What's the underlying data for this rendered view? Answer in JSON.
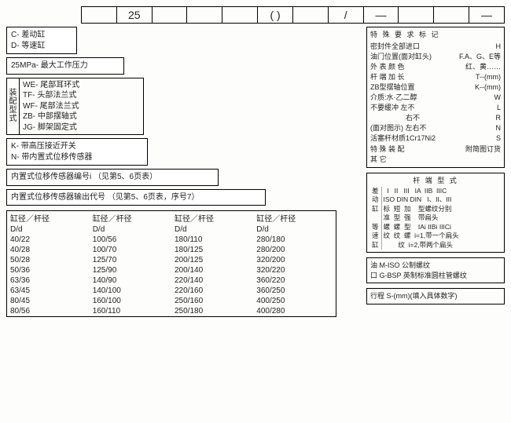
{
  "strip": [
    "",
    "25",
    "",
    "",
    "",
    "(  )",
    "",
    "/",
    "—",
    "",
    "",
    "—",
    ""
  ],
  "left_boxes": {
    "type_codes": [
      "C- 差动缸",
      "D- 等速缸"
    ],
    "pressure": "25MPa- 最大工作压力",
    "mount_side": "装配型式",
    "mounts": [
      "WE- 尾部耳环式",
      "TF- 头部法兰式",
      "WF- 尾部法兰式",
      "ZB- 中部摆轴式",
      "JG- 脚架固定式"
    ],
    "sensors": [
      "K- 带高压接近开关",
      "N- 带内置式位移传感器"
    ],
    "sensor_id": "内置式位移传感器编号i （见第5、6页表）",
    "sensor_out": "内置式位移传感器输出代号 （见第5、6页表，序号7）"
  },
  "diam_table": {
    "header": "缸径／杆径",
    "sub": "D/d",
    "cols": [
      [
        "40/22",
        "40/28",
        "50/28",
        "50/36",
        "63/36",
        "63/45",
        "80/45",
        "80/56"
      ],
      [
        "100/56",
        "100/70",
        "125/70",
        "125/90",
        "140/90",
        "140/100",
        "160/100",
        "160/110"
      ],
      [
        "180/110",
        "180/125",
        "200/125",
        "200/140",
        "220/140",
        "220/160",
        "250/160",
        "250/180"
      ],
      [
        "280/180",
        "280/200",
        "320/200",
        "320/220",
        "360/220",
        "360/250",
        "400/250",
        "400/280"
      ]
    ]
  },
  "special": {
    "title": "特 殊 要 求   标   记",
    "rows": [
      [
        "密封件全部进口",
        "H"
      ],
      [
        "油门位置(面对缸头)",
        "F.A、G、E等"
      ],
      [
        "外 表 颜 色",
        "红、黄……"
      ],
      [
        "杆 端 加 长",
        "T--(mm)"
      ],
      [
        "ZB型摆轴位置",
        "K--(mm)"
      ],
      [
        "介质:水·乙二醇",
        "W"
      ],
      [
        "不要缓冲  左不",
        "L"
      ],
      [
        "　　　　　右不",
        "R"
      ],
      [
        "(面对图示) 左右不",
        "N"
      ],
      [
        "活塞杆材质1Cr17Ni2",
        "S"
      ],
      [
        "特 殊 装 配",
        "附简图订货"
      ],
      [
        "其  它",
        ""
      ]
    ]
  },
  "rodend": {
    "title": "杆 端 型 式",
    "side": [
      "差",
      "动",
      "缸",
      "",
      "等",
      "速",
      "缸"
    ],
    "body": [
      "  I   II   III   IA  IIB  IIIC",
      "ISO DIN DIN   I、II、III",
      "标  短  加    型螺纹分别",
      "准  型  强    带扁头",
      "螺  螺  型    IAi IIBi IIICi",
      "纹  纹  螺  i=1,带一个扁头",
      "        纹  i=2,带两个扁头"
    ]
  },
  "oil": [
    "油   M-ISO 公制螺纹",
    "口   G-BSP 英制标准圆柱管螺纹"
  ],
  "stroke": "行程 S-(mm)(填入具体数字)"
}
